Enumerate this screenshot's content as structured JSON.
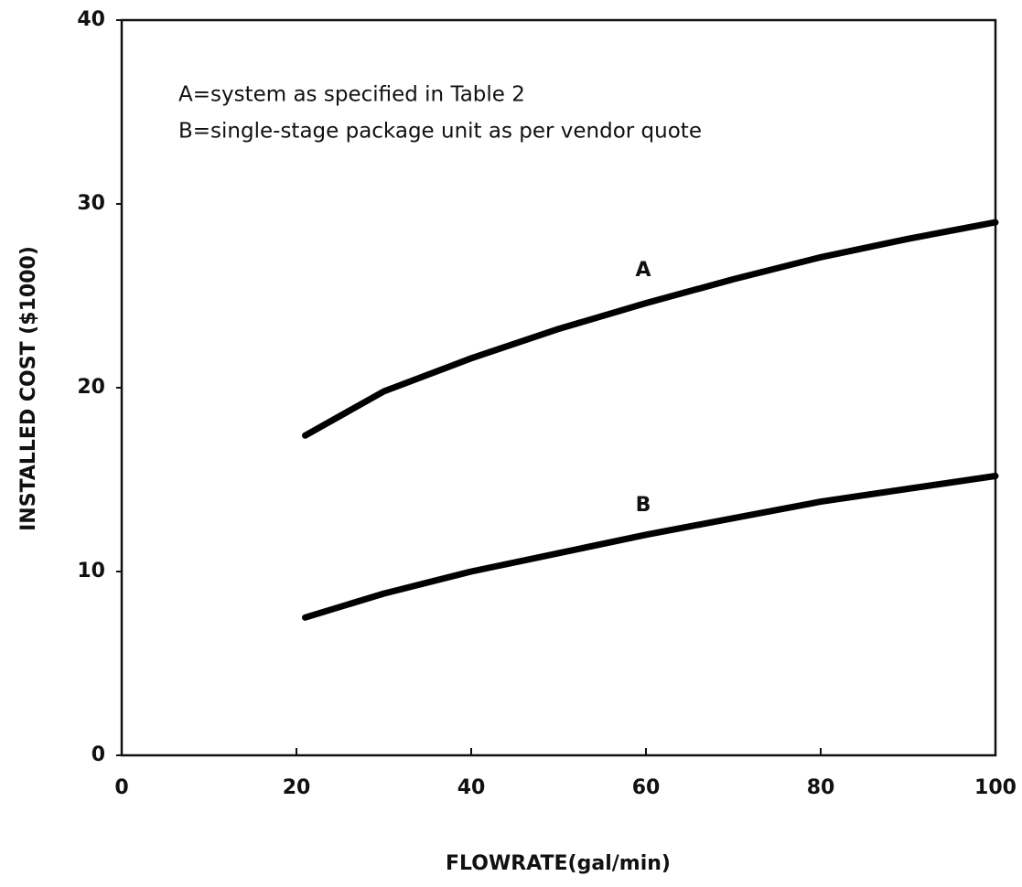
{
  "chart_data": {
    "type": "line",
    "xlabel": "FLOWRATE(gal/min)",
    "ylabel": "INSTALLED COST ($1000)",
    "annotations": [
      "A=system as specified in Table 2",
      "B=single-stage package unit as per vendor quote"
    ],
    "series": [
      {
        "name": "A",
        "color": "#000000",
        "x": [
          21,
          30,
          40,
          50,
          60,
          70,
          80,
          90,
          100
        ],
        "values": [
          17.4,
          19.8,
          21.6,
          23.2,
          24.6,
          25.9,
          27.1,
          28.1,
          29.0
        ]
      },
      {
        "name": "B",
        "color": "#000000",
        "x": [
          21,
          30,
          40,
          50,
          60,
          70,
          80,
          90,
          100
        ],
        "values": [
          7.5,
          8.8,
          10.0,
          11.0,
          12.0,
          12.9,
          13.8,
          14.5,
          15.2
        ]
      }
    ],
    "xlim": [
      0,
      100
    ],
    "xticks": [
      0,
      20,
      40,
      60,
      80,
      100
    ],
    "ylim": [
      0,
      40
    ],
    "yticks": [
      0,
      10,
      20,
      30,
      40
    ],
    "grid": false
  }
}
